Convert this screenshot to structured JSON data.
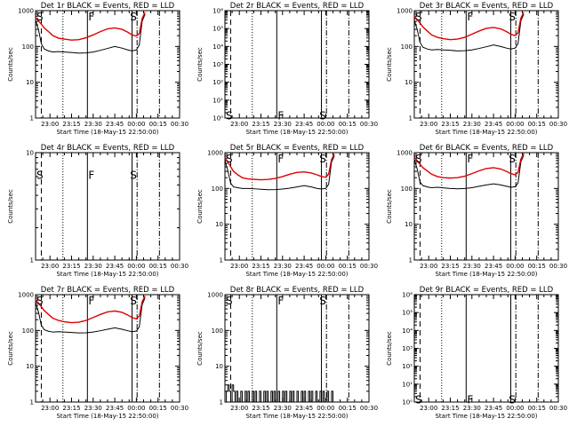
{
  "xlabel": "Start Time (18-May-15 22:50:00)",
  "ylabel": "Counts/sec",
  "xtick_labels": [
    "23:00",
    "23:15",
    "23:30",
    "23:45",
    "00:00",
    "00:15",
    "00:30"
  ],
  "xtick_values_min": [
    10,
    25,
    40,
    55,
    70,
    85,
    100
  ],
  "xlim_min": [
    0,
    100
  ],
  "markers": {
    "dashed_min": 4,
    "dotted_min": 19,
    "solid1_min": 36,
    "solid2_min": 67,
    "dashdot1_min": 70.5,
    "dashdot2_min": 86
  },
  "series_colors": {
    "events": "#000000",
    "lld": "#e00000"
  },
  "chart_data": [
    {
      "type": "line",
      "title": "Det 1r BLACK = Events, RED = LLD",
      "ylog": true,
      "ylim": [
        1,
        1000
      ],
      "ytick_labels": [
        "1",
        "10",
        "100",
        "1000"
      ],
      "ytick_values": [
        1,
        10,
        100,
        1000
      ],
      "mark_labels": [
        "S",
        "F",
        "S"
      ],
      "mark_y": 1000,
      "series": [
        {
          "name": "Events",
          "color": "#000000",
          "x": [
            0,
            2,
            4,
            6,
            9,
            12,
            16,
            20,
            25,
            30,
            35,
            40,
            45,
            50,
            55,
            60,
            64,
            67,
            70,
            72,
            74,
            76
          ],
          "y": [
            550,
            300,
            120,
            85,
            75,
            70,
            72,
            70,
            68,
            65,
            66,
            70,
            78,
            88,
            100,
            90,
            80,
            75,
            80,
            110,
            500,
            800
          ]
        },
        {
          "name": "LLD",
          "color": "#e00000",
          "x": [
            0,
            2,
            4,
            6,
            9,
            12,
            16,
            20,
            25,
            30,
            35,
            40,
            45,
            50,
            55,
            60,
            64,
            67,
            70,
            72,
            74,
            76
          ],
          "y": [
            650,
            520,
            420,
            330,
            260,
            200,
            170,
            160,
            150,
            155,
            175,
            210,
            260,
            310,
            330,
            300,
            250,
            210,
            195,
            230,
            600,
            900
          ]
        }
      ]
    },
    {
      "type": "line",
      "title": "Det 2r BLACK = Events, RED = LLD",
      "ylog": true,
      "ylim": [
        1,
        1000000
      ],
      "ytick_labels": [
        "10⁰",
        "10¹",
        "10²",
        "10³",
        "10⁴",
        "10⁵",
        "10⁶"
      ],
      "ytick_values": [
        1,
        10,
        100,
        1000,
        10000,
        100000,
        1000000
      ],
      "mark_labels": [
        "S",
        "F",
        "S"
      ],
      "mark_y": 3,
      "series": []
    },
    {
      "type": "line",
      "title": "Det 3r BLACK = Events, RED = LLD",
      "ylog": true,
      "ylim": [
        1,
        1000
      ],
      "ytick_labels": [
        "1",
        "10",
        "100",
        "1000"
      ],
      "ytick_values": [
        1,
        10,
        100,
        1000
      ],
      "mark_labels": [
        "S",
        "F",
        "S"
      ],
      "mark_y": 1000,
      "series": [
        {
          "name": "Events",
          "color": "#000000",
          "x": [
            0,
            2,
            4,
            6,
            9,
            12,
            16,
            20,
            25,
            30,
            35,
            40,
            45,
            50,
            55,
            60,
            64,
            67,
            70,
            72,
            74,
            76
          ],
          "y": [
            550,
            300,
            130,
            95,
            85,
            80,
            82,
            80,
            78,
            75,
            76,
            80,
            88,
            98,
            110,
            100,
            90,
            85,
            90,
            120,
            520,
            800
          ]
        },
        {
          "name": "LLD",
          "color": "#e00000",
          "x": [
            0,
            2,
            4,
            6,
            9,
            12,
            16,
            20,
            25,
            30,
            35,
            40,
            45,
            50,
            55,
            60,
            64,
            67,
            70,
            72,
            74,
            76
          ],
          "y": [
            700,
            560,
            450,
            350,
            270,
            210,
            180,
            165,
            155,
            160,
            180,
            220,
            270,
            320,
            340,
            310,
            260,
            220,
            200,
            240,
            620,
            900
          ]
        }
      ]
    },
    {
      "type": "line",
      "title": "Det 4r BLACK = Events, RED = LLD",
      "ylog": true,
      "ylim": [
        1,
        10
      ],
      "ytick_labels": [
        "1",
        "10"
      ],
      "ytick_values": [
        1,
        10
      ],
      "mark_labels": [
        "S",
        "F",
        "S"
      ],
      "mark_y": 7,
      "series": []
    },
    {
      "type": "line",
      "title": "Det 5r BLACK = Events, RED = LLD",
      "ylog": true,
      "ylim": [
        1,
        1000
      ],
      "ytick_labels": [
        "1",
        "10",
        "100",
        "1000"
      ],
      "ytick_values": [
        1,
        10,
        100,
        1000
      ],
      "mark_labels": [
        "S",
        "F",
        "S"
      ],
      "mark_y": 1000,
      "series": [
        {
          "name": "Events",
          "color": "#000000",
          "x": [
            0,
            2,
            4,
            6,
            9,
            12,
            16,
            20,
            25,
            30,
            35,
            40,
            45,
            50,
            55,
            60,
            64,
            67,
            70,
            72,
            74,
            76
          ],
          "y": [
            600,
            320,
            140,
            110,
            105,
            100,
            100,
            98,
            95,
            92,
            93,
            96,
            102,
            110,
            120,
            110,
            100,
            96,
            100,
            130,
            540,
            820
          ]
        },
        {
          "name": "LLD",
          "color": "#e00000",
          "x": [
            0,
            2,
            4,
            6,
            9,
            12,
            16,
            20,
            25,
            30,
            35,
            40,
            45,
            50,
            55,
            60,
            64,
            67,
            70,
            72,
            74,
            76
          ],
          "y": [
            700,
            560,
            400,
            300,
            240,
            200,
            185,
            180,
            175,
            178,
            190,
            215,
            250,
            280,
            290,
            270,
            240,
            215,
            205,
            250,
            640,
            920
          ]
        }
      ]
    },
    {
      "type": "line",
      "title": "Det 6r BLACK = Events, RED = LLD",
      "ylog": true,
      "ylim": [
        1,
        1000
      ],
      "ytick_labels": [
        "1",
        "10",
        "100",
        "1000"
      ],
      "ytick_values": [
        1,
        10,
        100,
        1000
      ],
      "mark_labels": [
        "S",
        "F",
        "S"
      ],
      "mark_y": 1000,
      "series": [
        {
          "name": "Events",
          "color": "#000000",
          "x": [
            0,
            2,
            4,
            6,
            9,
            12,
            16,
            20,
            25,
            30,
            35,
            40,
            45,
            50,
            55,
            60,
            64,
            67,
            70,
            72,
            74,
            76
          ],
          "y": [
            650,
            350,
            150,
            120,
            110,
            105,
            108,
            104,
            100,
            98,
            100,
            105,
            115,
            125,
            135,
            125,
            115,
            108,
            112,
            140,
            560,
            850
          ]
        },
        {
          "name": "LLD",
          "color": "#e00000",
          "x": [
            0,
            2,
            4,
            6,
            9,
            12,
            16,
            20,
            25,
            30,
            35,
            40,
            45,
            50,
            55,
            60,
            64,
            67,
            70,
            72,
            74,
            76
          ],
          "y": [
            750,
            600,
            470,
            380,
            310,
            250,
            215,
            200,
            195,
            200,
            220,
            260,
            310,
            360,
            380,
            350,
            300,
            260,
            240,
            280,
            660,
            950
          ]
        }
      ]
    },
    {
      "type": "line",
      "title": "Det 7r BLACK = Events, RED = LLD",
      "ylog": true,
      "ylim": [
        1,
        1000
      ],
      "ytick_labels": [
        "1",
        "10",
        "100",
        "1000"
      ],
      "ytick_values": [
        1,
        10,
        100,
        1000
      ],
      "mark_labels": [
        "S",
        "F",
        "S"
      ],
      "mark_y": 1000,
      "series": [
        {
          "name": "Events",
          "color": "#000000",
          "x": [
            0,
            2,
            4,
            6,
            9,
            12,
            16,
            20,
            25,
            30,
            35,
            40,
            45,
            50,
            55,
            60,
            64,
            67,
            70,
            72,
            74,
            76
          ],
          "y": [
            600,
            330,
            140,
            105,
            95,
            90,
            92,
            90,
            88,
            85,
            86,
            90,
            98,
            108,
            118,
            108,
            98,
            92,
            96,
            125,
            520,
            820
          ]
        },
        {
          "name": "LLD",
          "color": "#e00000",
          "x": [
            0,
            2,
            4,
            6,
            9,
            12,
            16,
            20,
            25,
            30,
            35,
            40,
            45,
            50,
            55,
            60,
            64,
            67,
            70,
            72,
            74,
            76
          ],
          "y": [
            720,
            580,
            460,
            360,
            280,
            220,
            190,
            175,
            165,
            170,
            190,
            230,
            280,
            330,
            350,
            320,
            270,
            230,
            210,
            250,
            630,
            920
          ]
        }
      ]
    },
    {
      "type": "line",
      "title": "Det 8r BLACK = Events, RED = LLD",
      "ylog": true,
      "ylim": [
        1,
        1000
      ],
      "ytick_labels": [
        "1",
        "10",
        "100",
        "1000"
      ],
      "ytick_values": [
        1,
        10,
        100,
        1000
      ],
      "mark_labels": [
        "S",
        "F",
        "S"
      ],
      "mark_y": 1000,
      "series": [
        {
          "name": "Events",
          "color": "#000000",
          "step": true,
          "x": [
            0,
            1,
            2,
            3,
            4,
            5,
            6,
            7,
            8,
            9,
            10,
            11,
            12,
            13,
            14,
            15,
            16,
            17,
            18,
            19,
            20,
            21,
            22,
            23,
            24,
            25,
            26,
            27,
            28,
            29,
            30,
            31,
            32,
            33,
            34,
            35,
            36,
            37,
            38,
            39,
            40,
            41,
            42,
            43,
            44,
            45,
            46,
            47,
            48,
            49,
            50,
            51,
            52,
            53,
            54,
            55,
            56,
            57,
            58,
            59,
            60,
            61,
            62,
            63,
            64,
            65,
            66,
            67,
            68,
            69,
            70,
            71,
            72,
            73,
            74,
            75,
            76
          ],
          "y": [
            1,
            2,
            3,
            2,
            1,
            3,
            2,
            1,
            2,
            1,
            1,
            2,
            1,
            1,
            2,
            1,
            2,
            1,
            1,
            2,
            1,
            2,
            1,
            1,
            2,
            1,
            1,
            2,
            1,
            2,
            1,
            1,
            2,
            1,
            2,
            1,
            1,
            2,
            1,
            1,
            2,
            1,
            2,
            1,
            1,
            2,
            1,
            2,
            1,
            1,
            2,
            1,
            1,
            2,
            1,
            2,
            1,
            1,
            2,
            1,
            2,
            1,
            1,
            2,
            1,
            1,
            2,
            1,
            2,
            1,
            1,
            2,
            1,
            1,
            2,
            1,
            1
          ]
        }
      ]
    },
    {
      "type": "line",
      "title": "Det 9r BLACK = Events, RED = LLD",
      "ylog": true,
      "ylim": [
        1,
        1000000
      ],
      "ytick_labels": [
        "10⁰",
        "10¹",
        "10²",
        "10³",
        "10⁴",
        "10⁵",
        "10⁶"
      ],
      "ytick_values": [
        1,
        10,
        100,
        1000,
        10000,
        100000,
        1000000
      ],
      "mark_labels": [
        "S",
        "F",
        "S"
      ],
      "mark_y": 3,
      "series": []
    }
  ]
}
